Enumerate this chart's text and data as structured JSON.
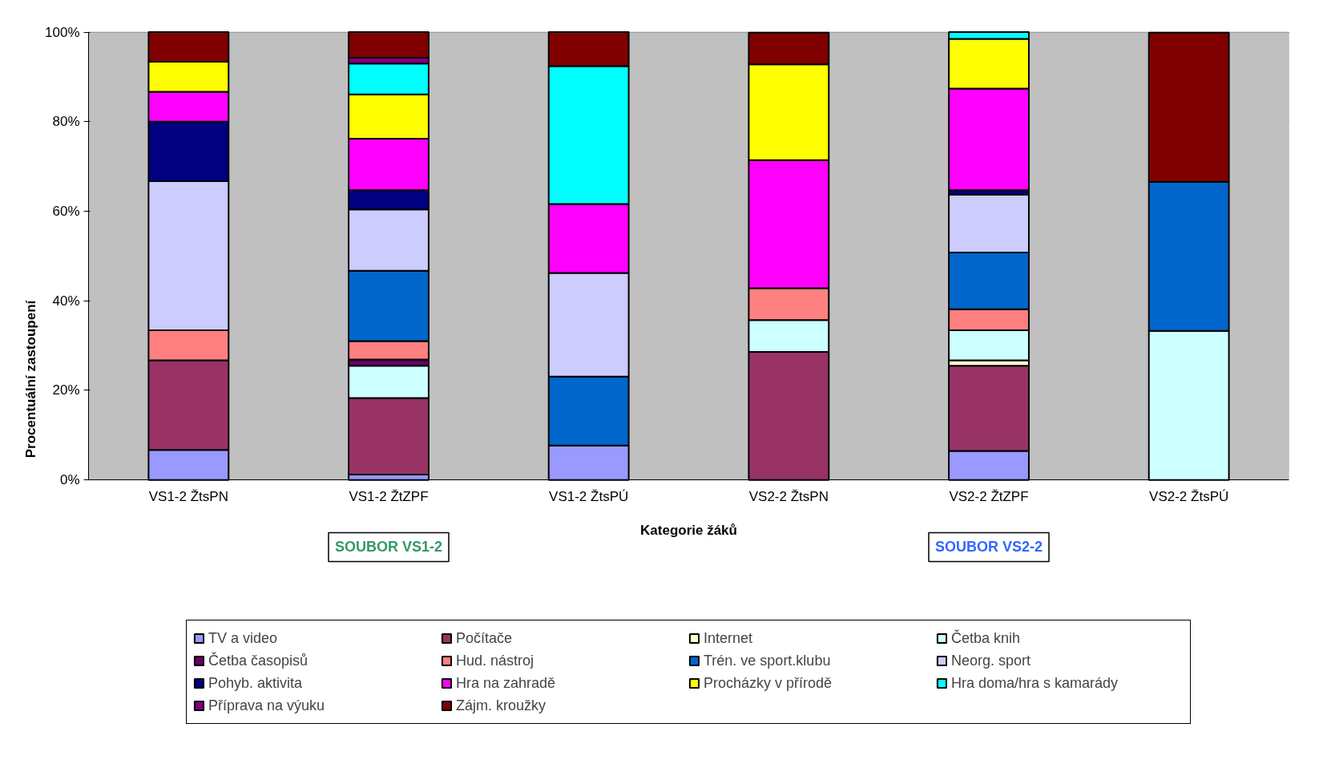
{
  "chart_data": {
    "type": "bar",
    "stacked": true,
    "xlabel": "Kategorie žáků",
    "ylabel": "Procentuální zastoupení",
    "categories": [
      "VS1-2 ŽtsPN",
      "VS1-2 ŽtZPF",
      "VS1-2 ŽtsPÚ",
      "VS2-2 ŽtsPN",
      "VS2-2 ŽtZPF",
      "VS2-2 ŽtsPÚ"
    ],
    "series": [
      {
        "name": "TV a video",
        "color": "#9999ff",
        "values": [
          6.7,
          1.2,
          7.7,
          0,
          6.5,
          0
        ]
      },
      {
        "name": "Počítače",
        "color": "#993366",
        "values": [
          20,
          17.1,
          0,
          28.6,
          19,
          0
        ]
      },
      {
        "name": "Internet",
        "color": "#ffffcc",
        "values": [
          0,
          0,
          0,
          0,
          1.2,
          0
        ]
      },
      {
        "name": "Četba knih",
        "color": "#ccffff",
        "values": [
          0,
          7.2,
          0,
          7.1,
          6.7,
          33.3
        ]
      },
      {
        "name": "Četba časopisů",
        "color": "#660066",
        "values": [
          0,
          1.4,
          0,
          0,
          0,
          0
        ]
      },
      {
        "name": "Hud. nástroj",
        "color": "#ff8080",
        "values": [
          6.7,
          4.1,
          0,
          7.1,
          4.7,
          0
        ]
      },
      {
        "name": "Trén. ve sport.klubu",
        "color": "#0066cc",
        "values": [
          0,
          15.7,
          15.4,
          0,
          12.7,
          33.3
        ]
      },
      {
        "name": "Neorg. sport",
        "color": "#ccccff",
        "values": [
          33.3,
          13.7,
          23.1,
          0,
          12.9,
          0
        ]
      },
      {
        "name": "Pohyb. aktivita",
        "color": "#000080",
        "values": [
          13.3,
          4.3,
          0,
          0,
          1.0,
          0
        ]
      },
      {
        "name": "Hra na zahradě",
        "color": "#ff00ff",
        "values": [
          6.7,
          11.5,
          15.4,
          28.6,
          22.7,
          0
        ]
      },
      {
        "name": "Procházky v přírodě",
        "color": "#ffff00",
        "values": [
          6.7,
          9.9,
          0,
          21.4,
          11.1,
          0
        ]
      },
      {
        "name": "Hra doma/hra s kamarády",
        "color": "#00ffff",
        "values": [
          0,
          6.9,
          30.8,
          0,
          1.5,
          0
        ]
      },
      {
        "name": "Příprava na výuku",
        "color": "#800080",
        "values": [
          0,
          1.3,
          0,
          0,
          0,
          0
        ]
      },
      {
        "name": "Zájm. kroužky",
        "color": "#800000",
        "values": [
          6.6,
          5.7,
          7.6,
          7.1,
          0,
          33.3
        ]
      }
    ],
    "ylim": [
      0,
      100
    ],
    "yticks": [
      {
        "value": 0,
        "label": "0%"
      },
      {
        "value": 20,
        "label": "20%"
      },
      {
        "value": 40,
        "label": "40%"
      },
      {
        "value": 60,
        "label": "60%"
      },
      {
        "value": 80,
        "label": "80%"
      },
      {
        "value": 100,
        "label": "100%"
      }
    ],
    "grid": "y",
    "legend": "bottom",
    "annotations": [
      "SOUBOR VS1-2",
      "SOUBOR VS2-2"
    ]
  }
}
